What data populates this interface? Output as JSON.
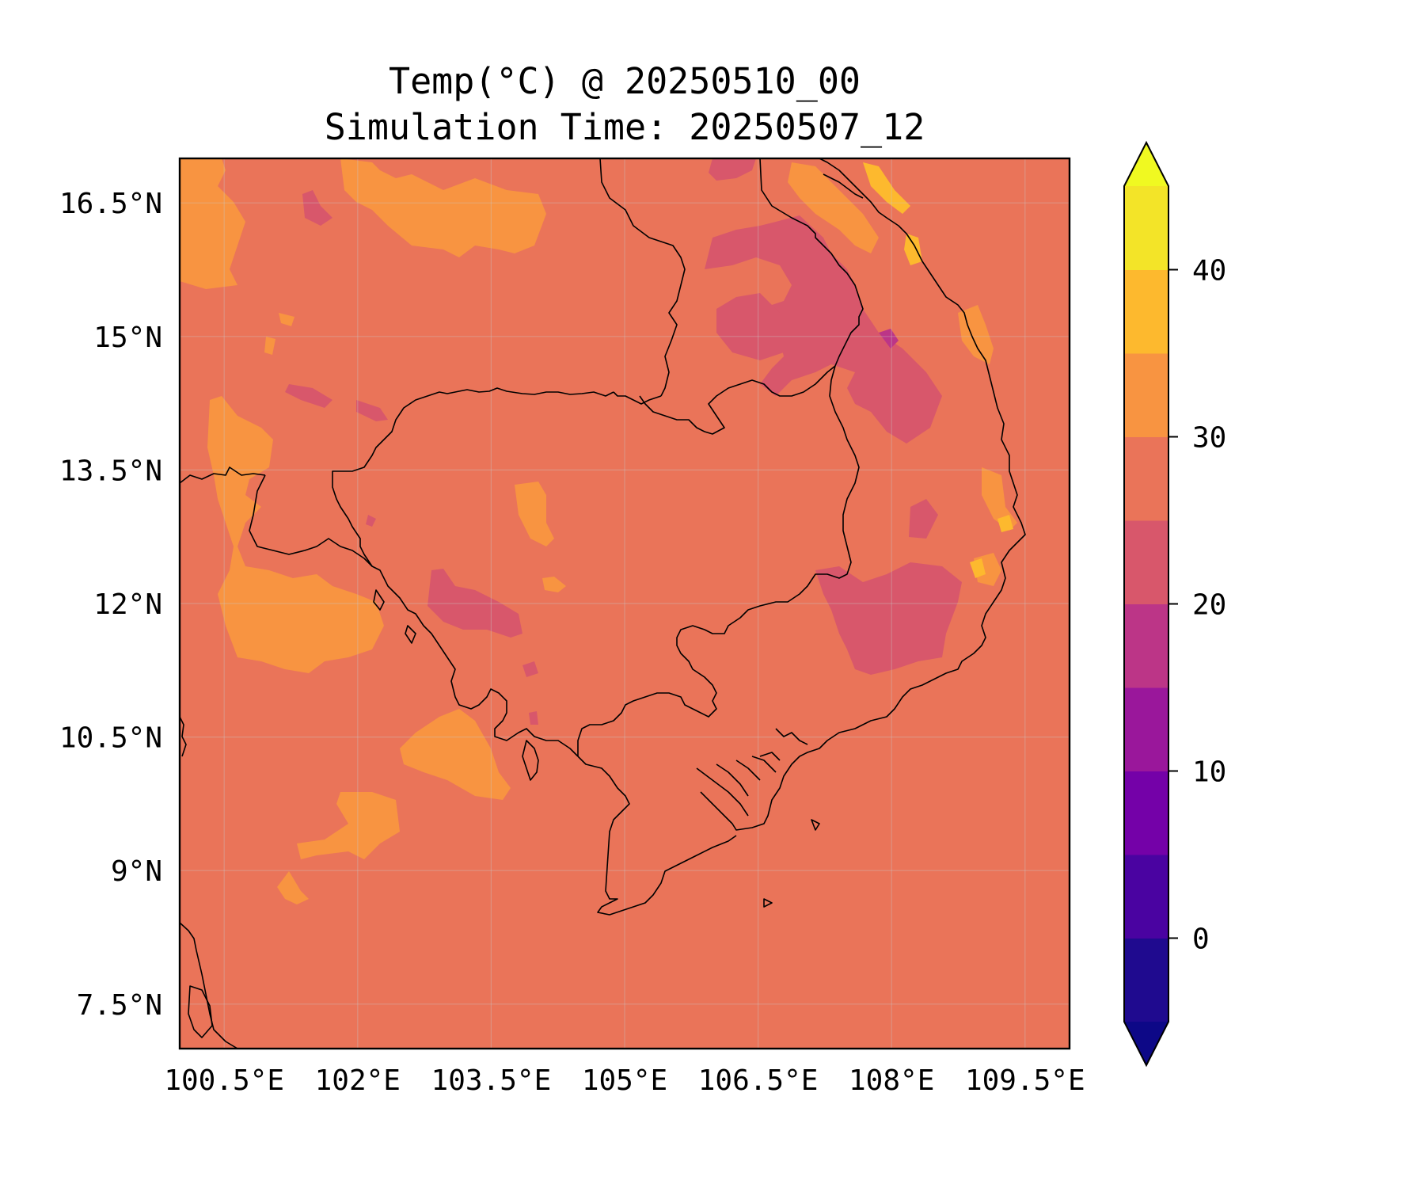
{
  "figure": {
    "title": "Temp(°C) @ 20250510_00",
    "subtitle": "Simulation Time: 20250507_12"
  },
  "map": {
    "lon_range": [
      100.0,
      110.0
    ],
    "lat_range": [
      7.0,
      17.0
    ],
    "x_ticks": [
      {
        "value": 100.5,
        "label": "100.5°E"
      },
      {
        "value": 102.0,
        "label": "102°E"
      },
      {
        "value": 103.5,
        "label": "103.5°E"
      },
      {
        "value": 105.0,
        "label": "105°E"
      },
      {
        "value": 106.5,
        "label": "106.5°E"
      },
      {
        "value": 108.0,
        "label": "108°E"
      },
      {
        "value": 109.5,
        "label": "109.5°E"
      }
    ],
    "y_ticks": [
      {
        "value": 7.5,
        "label": "7.5°N"
      },
      {
        "value": 9.0,
        "label": "9°N"
      },
      {
        "value": 10.5,
        "label": "10.5°N"
      },
      {
        "value": 12.0,
        "label": "12°N"
      },
      {
        "value": 13.5,
        "label": "13.5°N"
      },
      {
        "value": 15.0,
        "label": "15°N"
      },
      {
        "value": 16.5,
        "label": "16.5°N"
      }
    ],
    "grid": true,
    "background_color": "#ea7459"
  },
  "colorbar": {
    "levels": [
      -5,
      0,
      5,
      10,
      15,
      20,
      25,
      30,
      35,
      40,
      45
    ],
    "colors": [
      "#1f0a8f",
      "#4a03a1",
      "#7401a8",
      "#9a179b",
      "#bc3587",
      "#d8576b",
      "#ea7459",
      "#f89441",
      "#fdb92e",
      "#f3e428"
    ],
    "under_color": "#0d0887",
    "over_color": "#f0f921",
    "ticks": [
      {
        "value": 0,
        "label": "0"
      },
      {
        "value": 10,
        "label": "10"
      },
      {
        "value": 20,
        "label": "20"
      },
      {
        "value": 30,
        "label": "30"
      },
      {
        "value": 40,
        "label": "40"
      }
    ]
  }
}
